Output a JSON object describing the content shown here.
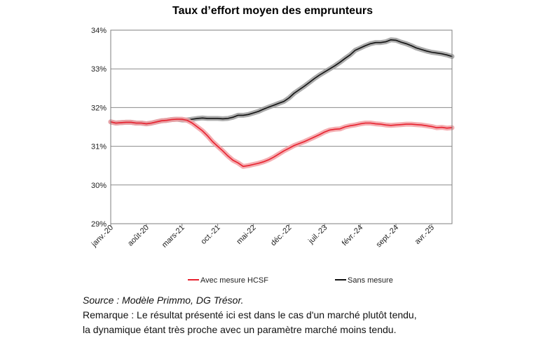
{
  "chart_data": {
    "type": "line",
    "title": "Taux d’effort moyen des emprunteurs",
    "xlabel": "",
    "ylabel": "",
    "x_ticks": [
      "janv.-20",
      "août-20",
      "mars-21",
      "oct.-21",
      "mai-22",
      "déc.-22",
      "juil.-23",
      "févr.-24",
      "sept.-24",
      "avr.-25"
    ],
    "y_ticks": [
      "29%",
      "30%",
      "31%",
      "32%",
      "33%",
      "34%"
    ],
    "ylim": [
      29,
      34
    ],
    "xlim_months": [
      0,
      67
    ],
    "grid": "horizontal",
    "legend_position": "bottom",
    "series": [
      {
        "name": "Avec mesure HCSF",
        "color": "#e8212e",
        "band_color": "#f2a0a4",
        "points": [
          {
            "x": "janv.-20",
            "y": 31.63
          },
          {
            "x": "févr.-20",
            "y": 31.6
          },
          {
            "x": "mars-20",
            "y": 31.61
          },
          {
            "x": "avr.-20",
            "y": 31.62
          },
          {
            "x": "mai-20",
            "y": 31.62
          },
          {
            "x": "juin-20",
            "y": 31.6
          },
          {
            "x": "juil.-20",
            "y": 31.6
          },
          {
            "x": "août-20",
            "y": 31.58
          },
          {
            "x": "sept.-20",
            "y": 31.6
          },
          {
            "x": "oct.-20",
            "y": 31.63
          },
          {
            "x": "nov.-20",
            "y": 31.66
          },
          {
            "x": "déc.-20",
            "y": 31.67
          },
          {
            "x": "janv.-21",
            "y": 31.69
          },
          {
            "x": "févr.-21",
            "y": 31.7
          },
          {
            "x": "mars-21",
            "y": 31.7
          },
          {
            "x": "avr.-21",
            "y": 31.67
          },
          {
            "x": "mai-21",
            "y": 31.6
          },
          {
            "x": "juin-21",
            "y": 31.5
          },
          {
            "x": "juil.-21",
            "y": 31.4
          },
          {
            "x": "août-21",
            "y": 31.27
          },
          {
            "x": "sept.-21",
            "y": 31.12
          },
          {
            "x": "oct.-21",
            "y": 31.0
          },
          {
            "x": "nov.-21",
            "y": 30.88
          },
          {
            "x": "déc.-21",
            "y": 30.75
          },
          {
            "x": "janv.-22",
            "y": 30.64
          },
          {
            "x": "févr.-22",
            "y": 30.57
          },
          {
            "x": "mars-22",
            "y": 30.48
          },
          {
            "x": "avr.-22",
            "y": 30.5
          },
          {
            "x": "mai-22",
            "y": 30.53
          },
          {
            "x": "juin-22",
            "y": 30.56
          },
          {
            "x": "juil.-22",
            "y": 30.6
          },
          {
            "x": "août-22",
            "y": 30.65
          },
          {
            "x": "sept.-22",
            "y": 30.72
          },
          {
            "x": "oct.-22",
            "y": 30.8
          },
          {
            "x": "nov.-22",
            "y": 30.88
          },
          {
            "x": "déc.-22",
            "y": 30.95
          },
          {
            "x": "janv.-23",
            "y": 31.02
          },
          {
            "x": "févr.-23",
            "y": 31.07
          },
          {
            "x": "mars-23",
            "y": 31.12
          },
          {
            "x": "avr.-23",
            "y": 31.18
          },
          {
            "x": "mai-23",
            "y": 31.24
          },
          {
            "x": "juin-23",
            "y": 31.3
          },
          {
            "x": "juil.-23",
            "y": 31.37
          },
          {
            "x": "août-23",
            "y": 31.42
          },
          {
            "x": "sept.-23",
            "y": 31.44
          },
          {
            "x": "oct.-23",
            "y": 31.45
          },
          {
            "x": "nov.-23",
            "y": 31.5
          },
          {
            "x": "déc.-23",
            "y": 31.53
          },
          {
            "x": "janv.-24",
            "y": 31.55
          },
          {
            "x": "févr.-24",
            "y": 31.58
          },
          {
            "x": "mars-24",
            "y": 31.6
          },
          {
            "x": "avr.-24",
            "y": 31.6
          },
          {
            "x": "mai-24",
            "y": 31.58
          },
          {
            "x": "juin-24",
            "y": 31.57
          },
          {
            "x": "juil.-24",
            "y": 31.55
          },
          {
            "x": "août-24",
            "y": 31.54
          },
          {
            "x": "sept.-24",
            "y": 31.55
          },
          {
            "x": "oct.-24",
            "y": 31.56
          },
          {
            "x": "nov.-24",
            "y": 31.57
          },
          {
            "x": "déc.-24",
            "y": 31.57
          },
          {
            "x": "janv.-25",
            "y": 31.56
          },
          {
            "x": "févr.-25",
            "y": 31.55
          },
          {
            "x": "mars-25",
            "y": 31.53
          },
          {
            "x": "avr.-25",
            "y": 31.51
          },
          {
            "x": "mai-25",
            "y": 31.48
          },
          {
            "x": "juin-25",
            "y": 31.49
          },
          {
            "x": "juil.-25",
            "y": 31.47
          },
          {
            "x": "août-25",
            "y": 31.48
          }
        ]
      },
      {
        "name": "Sans mesure",
        "color": "#111111",
        "band_color": "#9d9d9d",
        "points": [
          {
            "x": "janv.-20",
            "y": 31.63
          },
          {
            "x": "févr.-20",
            "y": 31.6
          },
          {
            "x": "mars-20",
            "y": 31.61
          },
          {
            "x": "avr.-20",
            "y": 31.62
          },
          {
            "x": "mai-20",
            "y": 31.62
          },
          {
            "x": "juin-20",
            "y": 31.6
          },
          {
            "x": "juil.-20",
            "y": 31.6
          },
          {
            "x": "août-20",
            "y": 31.58
          },
          {
            "x": "sept.-20",
            "y": 31.6
          },
          {
            "x": "oct.-20",
            "y": 31.63
          },
          {
            "x": "nov.-20",
            "y": 31.66
          },
          {
            "x": "déc.-20",
            "y": 31.67
          },
          {
            "x": "janv.-21",
            "y": 31.69
          },
          {
            "x": "févr.-21",
            "y": 31.7
          },
          {
            "x": "mars-21",
            "y": 31.68
          },
          {
            "x": "avr.-21",
            "y": 31.68
          },
          {
            "x": "mai-21",
            "y": 31.7
          },
          {
            "x": "juin-21",
            "y": 31.72
          },
          {
            "x": "juil.-21",
            "y": 31.73
          },
          {
            "x": "août-21",
            "y": 31.72
          },
          {
            "x": "sept.-21",
            "y": 31.72
          },
          {
            "x": "oct.-21",
            "y": 31.72
          },
          {
            "x": "nov.-21",
            "y": 31.71
          },
          {
            "x": "déc.-21",
            "y": 31.72
          },
          {
            "x": "janv.-22",
            "y": 31.75
          },
          {
            "x": "févr.-22",
            "y": 31.8
          },
          {
            "x": "mars-22",
            "y": 31.8
          },
          {
            "x": "avr.-22",
            "y": 31.82
          },
          {
            "x": "mai-22",
            "y": 31.86
          },
          {
            "x": "juin-22",
            "y": 31.9
          },
          {
            "x": "juil.-22",
            "y": 31.96
          },
          {
            "x": "août-22",
            "y": 32.01
          },
          {
            "x": "sept.-22",
            "y": 32.06
          },
          {
            "x": "oct.-22",
            "y": 32.11
          },
          {
            "x": "nov.-22",
            "y": 32.16
          },
          {
            "x": "déc.-22",
            "y": 32.25
          },
          {
            "x": "janv.-23",
            "y": 32.37
          },
          {
            "x": "févr.-23",
            "y": 32.46
          },
          {
            "x": "mars-23",
            "y": 32.55
          },
          {
            "x": "avr.-23",
            "y": 32.65
          },
          {
            "x": "mai-23",
            "y": 32.75
          },
          {
            "x": "juin-23",
            "y": 32.84
          },
          {
            "x": "juil.-23",
            "y": 32.92
          },
          {
            "x": "août-23",
            "y": 33.0
          },
          {
            "x": "sept.-23",
            "y": 33.08
          },
          {
            "x": "oct.-23",
            "y": 33.17
          },
          {
            "x": "nov.-23",
            "y": 33.27
          },
          {
            "x": "déc.-23",
            "y": 33.36
          },
          {
            "x": "janv.-24",
            "y": 33.48
          },
          {
            "x": "févr.-24",
            "y": 33.54
          },
          {
            "x": "mars-24",
            "y": 33.6
          },
          {
            "x": "avr.-24",
            "y": 33.65
          },
          {
            "x": "mai-24",
            "y": 33.68
          },
          {
            "x": "juin-24",
            "y": 33.68
          },
          {
            "x": "juil.-24",
            "y": 33.7
          },
          {
            "x": "août-24",
            "y": 33.75
          },
          {
            "x": "sept.-24",
            "y": 33.74
          },
          {
            "x": "oct.-24",
            "y": 33.69
          },
          {
            "x": "nov.-24",
            "y": 33.65
          },
          {
            "x": "déc.-24",
            "y": 33.6
          },
          {
            "x": "janv.-25",
            "y": 33.54
          },
          {
            "x": "févr.-25",
            "y": 33.5
          },
          {
            "x": "mars-25",
            "y": 33.46
          },
          {
            "x": "avr.-25",
            "y": 33.43
          },
          {
            "x": "mai-25",
            "y": 33.41
          },
          {
            "x": "juin-25",
            "y": 33.39
          },
          {
            "x": "juil.-25",
            "y": 33.36
          },
          {
            "x": "août-25",
            "y": 33.32
          }
        ]
      }
    ]
  },
  "notes": {
    "source": "Source : Modèle Primmo, DG Trésor.",
    "remark_line1": "Remarque : Le résultat présenté ici est dans le cas d'un marché plutôt tendu,",
    "remark_line2": "la dynamique étant très proche avec un paramètre marché moins tendu."
  }
}
